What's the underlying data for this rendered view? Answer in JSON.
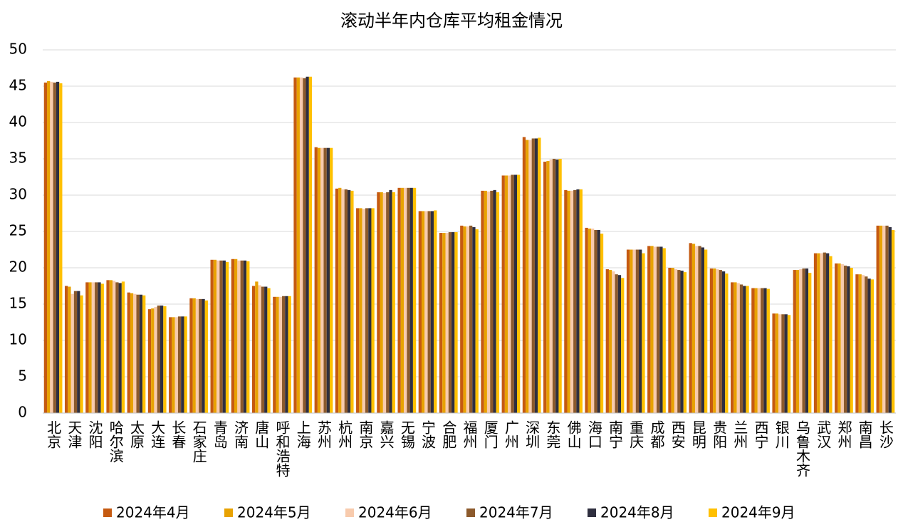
{
  "chart_data": {
    "type": "bar",
    "title": "滚动半年内仓库平均租金情况",
    "categories": [
      "北京",
      "天津",
      "沈阳",
      "哈尔滨",
      "太原",
      "大连",
      "长春",
      "石家庄",
      "青岛",
      "济南",
      "唐山",
      "呼和浩特",
      "上海",
      "苏州",
      "杭州",
      "南京",
      "嘉兴",
      "无锡",
      "宁波",
      "合肥",
      "福州",
      "厦门",
      "广州",
      "深圳",
      "东莞",
      "佛山",
      "海口",
      "南宁",
      "重庆",
      "成都",
      "西安",
      "昆明",
      "贵阳",
      "兰州",
      "西宁",
      "银川",
      "乌鲁木齐",
      "武汉",
      "郑州",
      "南昌",
      "长沙"
    ],
    "series": [
      {
        "name": "2024年4月",
        "color": "#c55a11",
        "values": [
          45.5,
          17.5,
          18.0,
          18.3,
          16.6,
          14.3,
          13.2,
          15.8,
          21.1,
          21.2,
          17.5,
          16.0,
          46.2,
          36.6,
          30.9,
          28.2,
          30.4,
          31.0,
          27.8,
          24.8,
          25.8,
          30.6,
          32.7,
          38.0,
          34.6,
          30.7,
          25.5,
          19.8,
          22.5,
          23.0,
          20.0,
          23.4,
          19.9,
          18.0,
          17.2,
          13.7,
          19.7,
          22.0,
          20.6,
          19.1,
          25.8
        ]
      },
      {
        "name": "2024年5月",
        "color": "#e8a202",
        "values": [
          45.7,
          17.4,
          18.0,
          18.3,
          16.5,
          14.4,
          13.2,
          15.8,
          21.1,
          21.2,
          18.1,
          16.0,
          46.2,
          36.5,
          31.0,
          28.2,
          30.4,
          31.0,
          27.8,
          24.8,
          25.7,
          30.6,
          32.7,
          37.6,
          34.7,
          30.6,
          25.4,
          19.7,
          22.5,
          23.0,
          20.0,
          23.3,
          19.9,
          18.0,
          17.2,
          13.7,
          19.7,
          22.0,
          20.6,
          19.1,
          25.8
        ]
      },
      {
        "name": "2024年6月",
        "color": "#f8cbad",
        "values": [
          45.6,
          16.4,
          18.0,
          18.2,
          16.4,
          14.6,
          13.2,
          15.7,
          21.0,
          21.0,
          17.6,
          16.0,
          46.2,
          36.5,
          30.8,
          28.1,
          30.3,
          31.0,
          27.8,
          24.8,
          25.7,
          30.5,
          32.7,
          37.6,
          34.9,
          30.6,
          25.4,
          19.5,
          22.5,
          22.9,
          19.8,
          23.0,
          19.8,
          17.9,
          17.2,
          13.6,
          19.8,
          22.0,
          20.5,
          19.0,
          25.8
        ]
      },
      {
        "name": "2024年7月",
        "color": "#8c5a2c",
        "values": [
          45.5,
          16.8,
          18.0,
          18.0,
          16.3,
          14.8,
          13.3,
          15.7,
          21.0,
          21.0,
          17.4,
          16.1,
          46.1,
          36.5,
          30.8,
          28.2,
          30.4,
          31.0,
          27.8,
          24.9,
          25.8,
          30.6,
          32.8,
          37.8,
          35.0,
          30.7,
          25.2,
          19.1,
          22.5,
          22.9,
          19.7,
          23.0,
          19.7,
          17.7,
          17.2,
          13.6,
          19.9,
          22.1,
          20.3,
          18.8,
          25.8
        ]
      },
      {
        "name": "2024年8月",
        "color": "#2f2f3f",
        "values": [
          45.6,
          16.8,
          18.0,
          17.9,
          16.3,
          14.8,
          13.3,
          15.7,
          21.0,
          21.0,
          17.4,
          16.1,
          46.3,
          36.5,
          30.7,
          28.2,
          30.7,
          31.0,
          27.8,
          24.9,
          25.6,
          30.7,
          32.8,
          37.8,
          34.9,
          30.8,
          25.2,
          19.0,
          22.5,
          22.9,
          19.6,
          22.8,
          19.5,
          17.5,
          17.2,
          13.6,
          19.9,
          22.0,
          20.2,
          18.5,
          25.6
        ]
      },
      {
        "name": "2024年9月",
        "color": "#ffc000",
        "values": [
          45.4,
          16.2,
          17.8,
          18.1,
          16.2,
          14.7,
          13.3,
          15.5,
          20.8,
          20.9,
          17.2,
          16.1,
          46.3,
          36.5,
          30.6,
          28.2,
          30.4,
          31.0,
          27.9,
          24.9,
          25.3,
          30.4,
          32.8,
          37.9,
          35.0,
          30.8,
          24.7,
          18.6,
          22.0,
          22.7,
          19.4,
          22.5,
          19.2,
          17.5,
          17.1,
          13.5,
          19.3,
          21.6,
          20.0,
          18.4,
          25.2
        ]
      }
    ],
    "ylim": [
      0,
      50
    ],
    "yticks": [
      0,
      5,
      10,
      15,
      20,
      25,
      30,
      35,
      40,
      45,
      50
    ],
    "grid": true
  }
}
